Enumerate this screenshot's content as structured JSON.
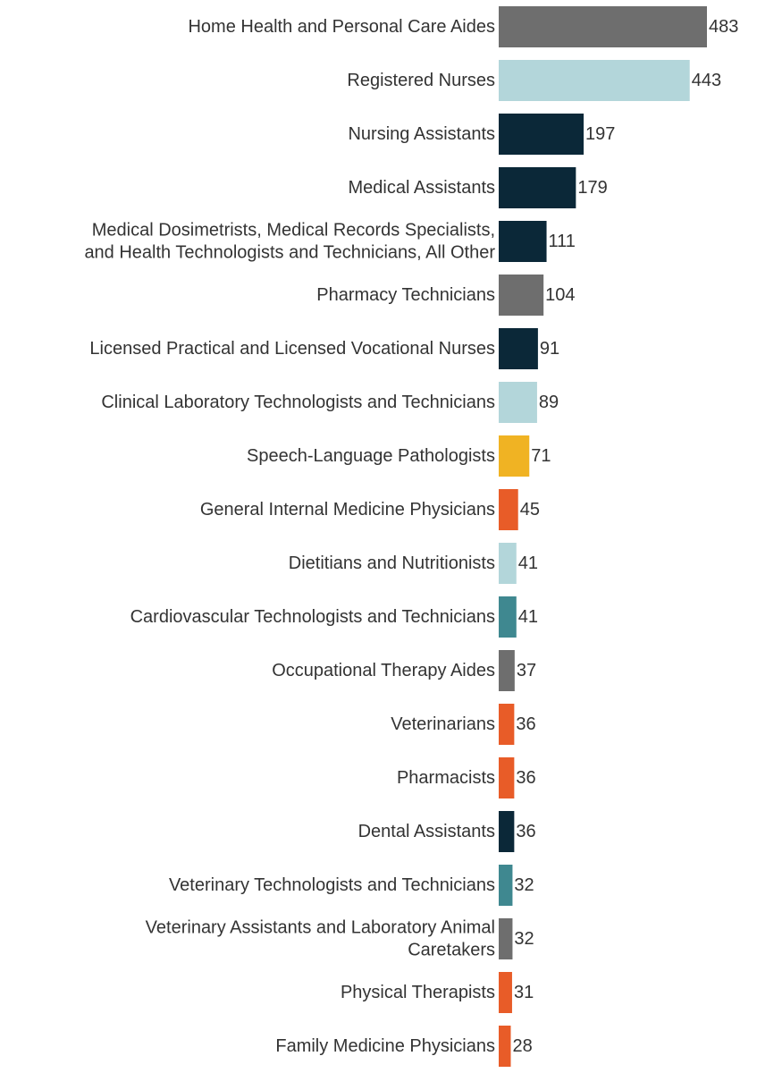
{
  "chart_data": {
    "type": "bar",
    "orientation": "horizontal",
    "categories": [
      "Home Health and Personal Care Aides",
      "Registered Nurses",
      "Nursing Assistants",
      "Medical Assistants",
      "Medical Dosimetrists, Medical Records Specialists, and Health Technologists and Technicians, All Other",
      "Pharmacy Technicians",
      "Licensed Practical and Licensed Vocational Nurses",
      "Clinical Laboratory Technologists and Technicians",
      "Speech-Language Pathologists",
      "General Internal Medicine Physicians",
      "Dietitians and Nutritionists",
      "Cardiovascular Technologists and Technicians",
      "Occupational Therapy Aides",
      "Veterinarians",
      "Pharmacists",
      "Dental Assistants",
      "Veterinary Technologists and Technicians",
      "Veterinary Assistants and Laboratory Animal Caretakers",
      "Physical Therapists",
      "Family Medicine Physicians"
    ],
    "label_lines": [
      [
        "Home Health and Personal Care Aides"
      ],
      [
        "Registered Nurses"
      ],
      [
        "Nursing Assistants"
      ],
      [
        "Medical Assistants"
      ],
      [
        "Medical Dosimetrists, Medical Records Specialists,",
        "and Health Technologists and Technicians, All Other"
      ],
      [
        "Pharmacy Technicians"
      ],
      [
        "Licensed Practical and Licensed Vocational Nurses"
      ],
      [
        "Clinical Laboratory Technologists and Technicians"
      ],
      [
        "Speech-Language Pathologists"
      ],
      [
        "General Internal Medicine Physicians"
      ],
      [
        "Dietitians and Nutritionists"
      ],
      [
        "Cardiovascular Technologists and Technicians"
      ],
      [
        "Occupational Therapy Aides"
      ],
      [
        "Veterinarians"
      ],
      [
        "Pharmacists"
      ],
      [
        "Dental Assistants"
      ],
      [
        "Veterinary Technologists and Technicians"
      ],
      [
        "Veterinary Assistants and Laboratory Animal",
        "Caretakers"
      ],
      [
        "Physical Therapists"
      ],
      [
        "Family Medicine Physicians"
      ]
    ],
    "values": [
      483,
      443,
      197,
      179,
      111,
      104,
      91,
      89,
      71,
      45,
      41,
      41,
      37,
      36,
      36,
      36,
      32,
      32,
      31,
      28
    ],
    "bar_colors": [
      "#6e6e6e",
      "#b3d6da",
      "#0b2838",
      "#0b2838",
      "#0b2838",
      "#6e6e6e",
      "#0b2838",
      "#b3d6da",
      "#f0b323",
      "#e85c28",
      "#b3d6da",
      "#3f8890",
      "#6e6e6e",
      "#e85c28",
      "#e85c28",
      "#0b2838",
      "#3f8890",
      "#6e6e6e",
      "#e85c28",
      "#e85c28"
    ],
    "xlim": [
      0,
      483
    ],
    "title": "",
    "xlabel": "",
    "ylabel": "",
    "grid": false,
    "legend": "none",
    "data_labels": true
  }
}
